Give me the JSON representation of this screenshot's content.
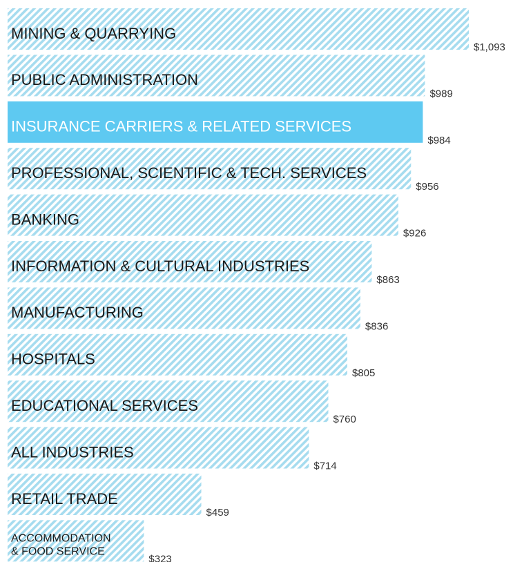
{
  "chart_data": {
    "type": "hbar",
    "categories": [
      "MINING & QUARRYING",
      "PUBLIC ADMINISTRATION",
      "INSURANCE CARRIERS & RELATED SERVICES",
      "PROFESSIONAL, SCIENTIFIC & TECH. SERVICES",
      "BANKING",
      "INFORMATION & CULTURAL INDUSTRIES",
      "MANUFACTURING",
      "HOSPITALS",
      "EDUCATIONAL SERVICES",
      "ALL INDUSTRIES",
      "RETAIL TRADE",
      "ACCOMMODATION & FOOD SERVICE"
    ],
    "values": [
      1093,
      989,
      984,
      956,
      926,
      863,
      836,
      805,
      760,
      714,
      459,
      323
    ],
    "value_labels": [
      "$1,093",
      "$989",
      "$984",
      "$956",
      "$926",
      "$863",
      "$836",
      "$805",
      "$760",
      "$714",
      "$459",
      "$323"
    ],
    "color": "#a6dcef",
    "highlight": {
      "index": 2,
      "color": "#5ec9f1"
    },
    "xlim": [
      0,
      1093
    ]
  }
}
